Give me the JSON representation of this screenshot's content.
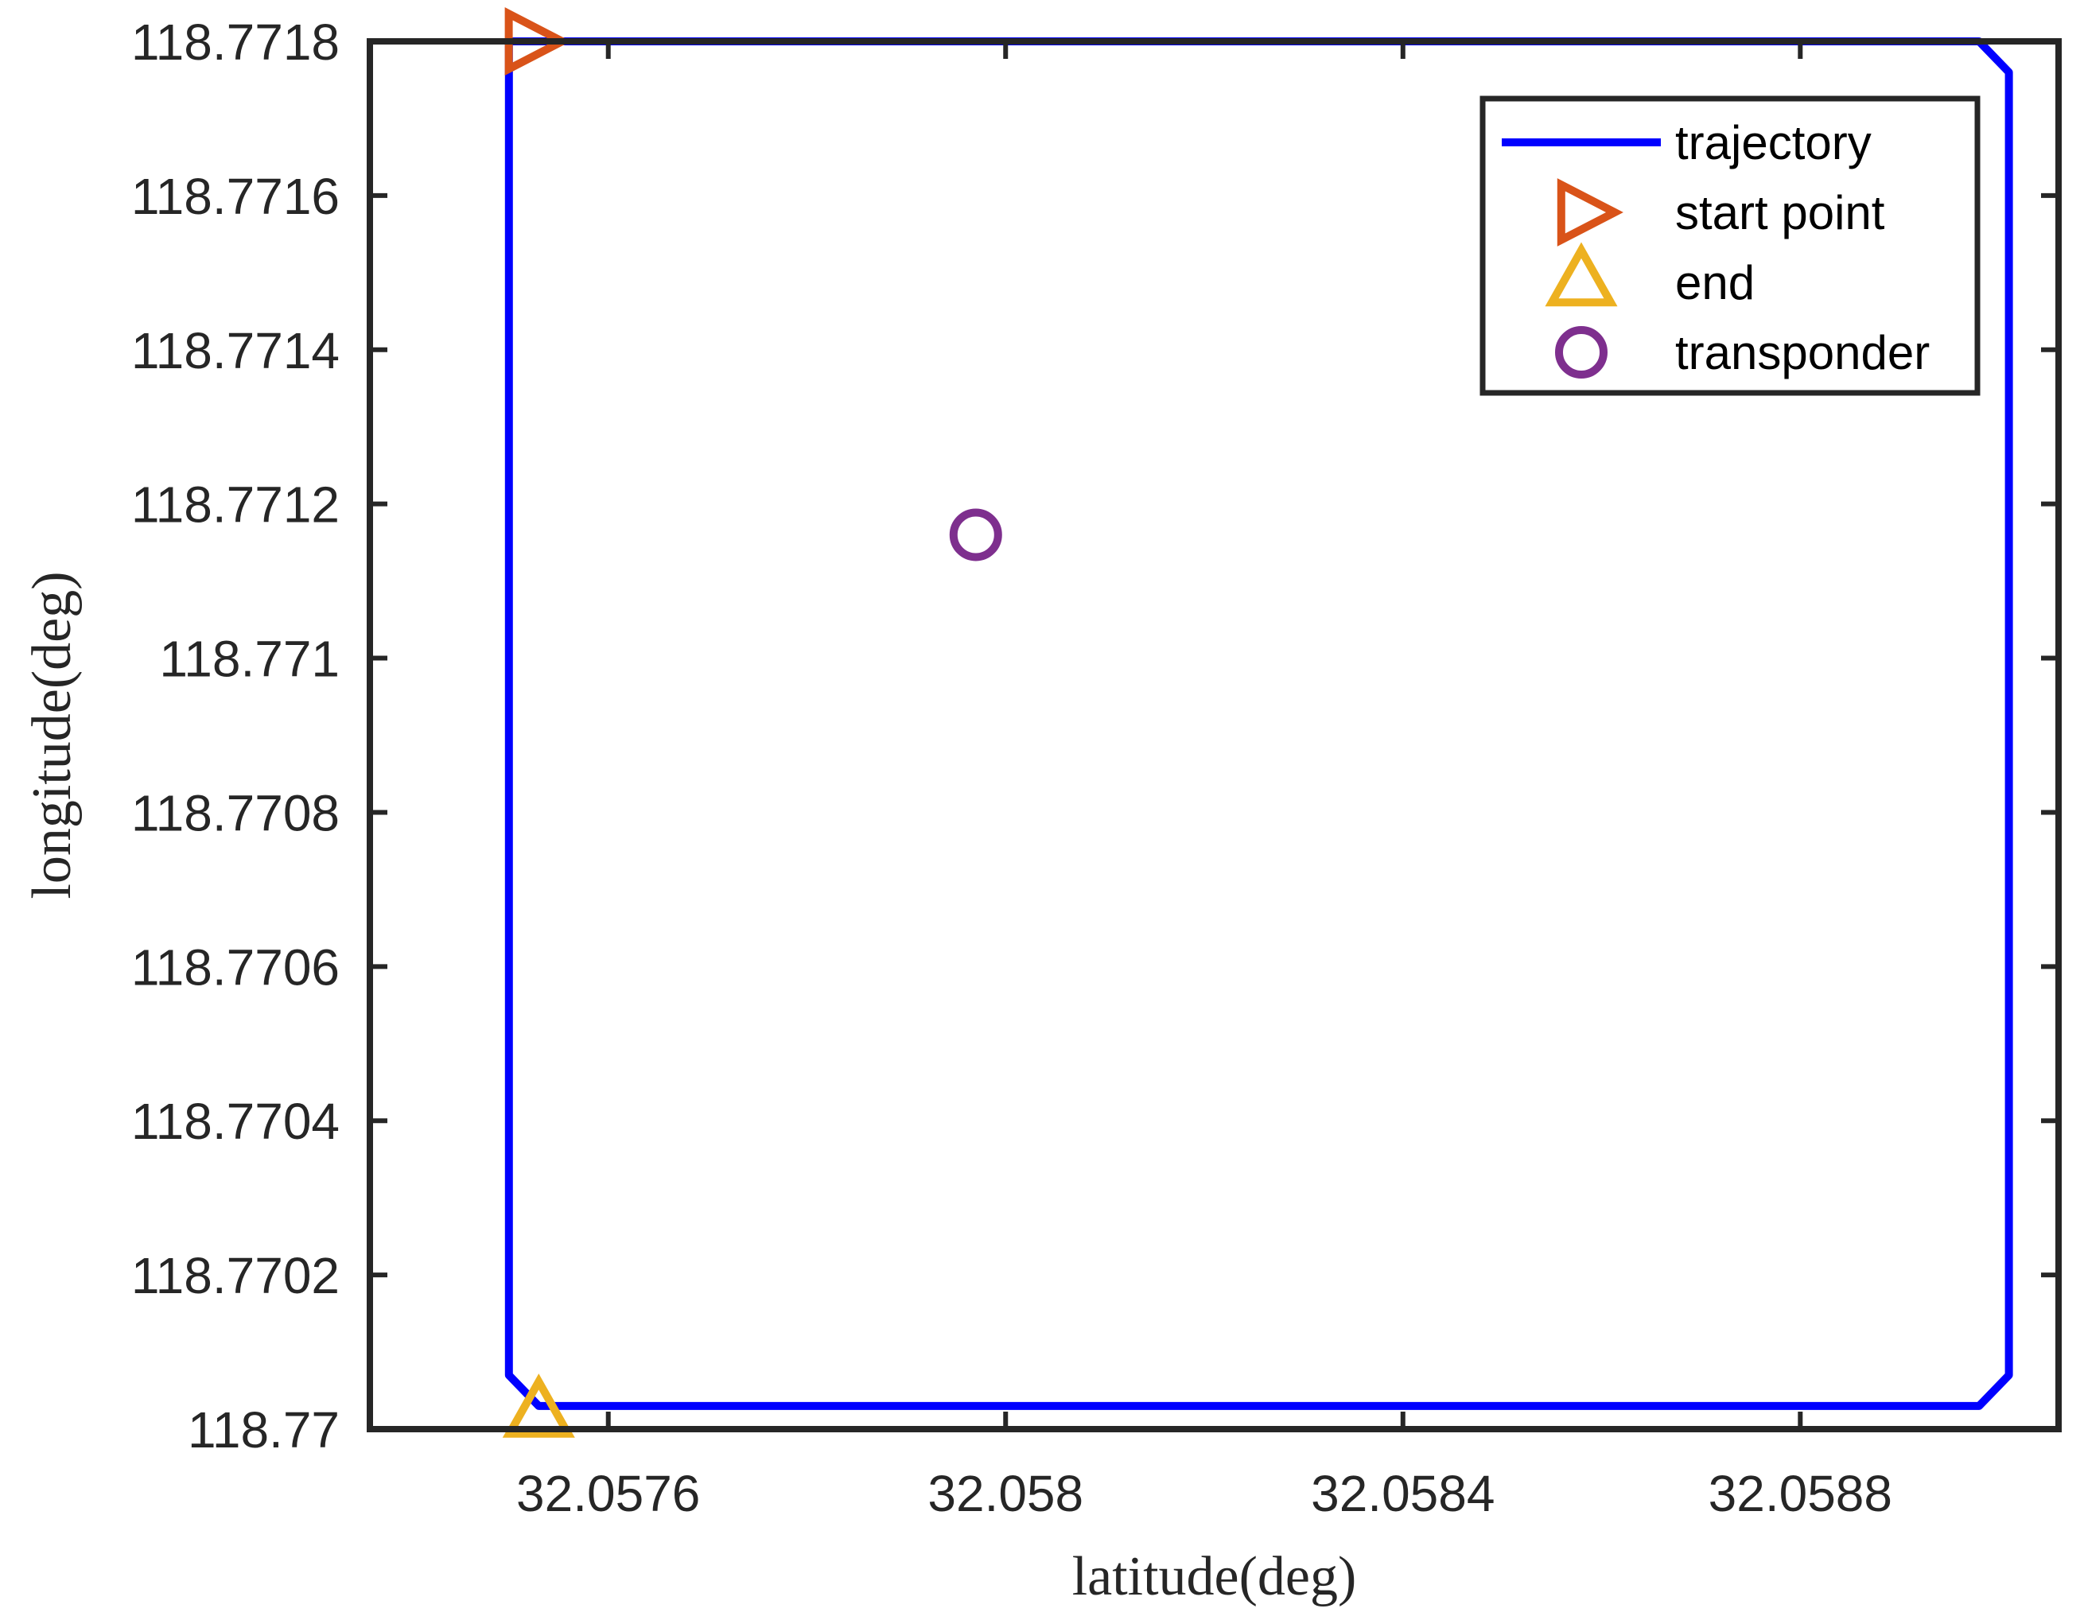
{
  "chart_data": {
    "type": "line",
    "title": "",
    "xlabel": "latitude(deg)",
    "ylabel": "longitude(deg)",
    "xlim": [
      32.05736,
      32.05906
    ],
    "ylim": [
      118.77,
      118.7718
    ],
    "xticks": [
      {
        "value": 32.0576,
        "label": "32.0576"
      },
      {
        "value": 32.058,
        "label": "32.058"
      },
      {
        "value": 32.0584,
        "label": "32.0584"
      },
      {
        "value": 32.0588,
        "label": "32.0588"
      }
    ],
    "yticks": [
      {
        "value": 118.77,
        "label": "118.77"
      },
      {
        "value": 118.7702,
        "label": "118.7702"
      },
      {
        "value": 118.7704,
        "label": "118.7704"
      },
      {
        "value": 118.7706,
        "label": "118.7706"
      },
      {
        "value": 118.7708,
        "label": "118.7708"
      },
      {
        "value": 118.771,
        "label": "118.771"
      },
      {
        "value": 118.7712,
        "label": "118.7712"
      },
      {
        "value": 118.7714,
        "label": "118.7714"
      },
      {
        "value": 118.7716,
        "label": "118.7716"
      },
      {
        "value": 118.7718,
        "label": "118.7718"
      }
    ],
    "grid": false,
    "legend_position": "top-right",
    "series": [
      {
        "name": "trajectory",
        "kind": "line",
        "color": "#0000ff",
        "x": [
          32.0575,
          32.0575,
          32.05753,
          32.05898,
          32.05901,
          32.05901,
          32.05898,
          32.05753,
          32.0575
        ],
        "y": [
          118.7718,
          118.77007,
          118.77003,
          118.77003,
          118.77007,
          118.77176,
          118.7718,
          118.7718,
          118.7718
        ]
      },
      {
        "name": "start point",
        "kind": "marker",
        "marker": "triangle-right",
        "color": "#d95319",
        "x": [
          32.05752
        ],
        "y": [
          118.7718
        ]
      },
      {
        "name": "end",
        "kind": "marker",
        "marker": "triangle-up",
        "color": "#edb120",
        "x": [
          32.05753
        ],
        "y": [
          118.77002
        ]
      },
      {
        "name": "transponder",
        "kind": "marker",
        "marker": "circle",
        "color": "#7e2f8e",
        "x": [
          32.05797
        ],
        "y": [
          118.77116
        ]
      }
    ]
  }
}
